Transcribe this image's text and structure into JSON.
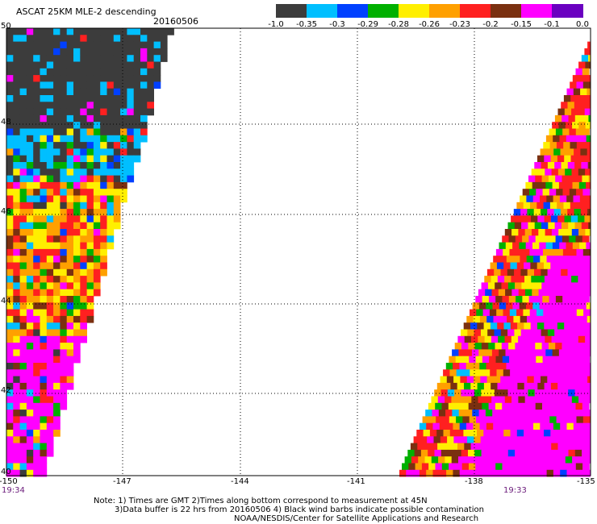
{
  "header": {
    "title": "ASCAT 25KM MLE-2 descending",
    "date": "20160506"
  },
  "colorbar": {
    "labels": [
      "-1.0",
      "-0.35",
      "-0.3",
      "-0.29",
      "-0.28",
      "-0.26",
      "-0.23",
      "-0.2",
      "-0.15",
      "-0.1",
      "0.0"
    ],
    "colors": [
      "#3c3c3c",
      "#00bfff",
      "#0040ff",
      "#00b000",
      "#ffef00",
      "#ffa000",
      "#ff2020",
      "#7a3010",
      "#ff00ff",
      "#6a00c0"
    ]
  },
  "map": {
    "lat_labels": [
      "50",
      "48",
      "46",
      "44",
      "42",
      "40"
    ],
    "lon_labels": [
      "-150",
      "-147",
      "-144",
      "-141",
      "-138",
      "-135"
    ],
    "left_time": "19:34",
    "right_time": "19:33",
    "grid": "dotted"
  },
  "notes": {
    "line1": "Note: 1) Times are GMT 2)Times along bottom correspond to measurement at 45N",
    "line2": "3)Data buffer is 22 hrs from 20160506 4) Black wind barbs indicate possible contamination",
    "line3": "NOAA/NESDIS/Center for Satellite Applications and Research"
  }
}
